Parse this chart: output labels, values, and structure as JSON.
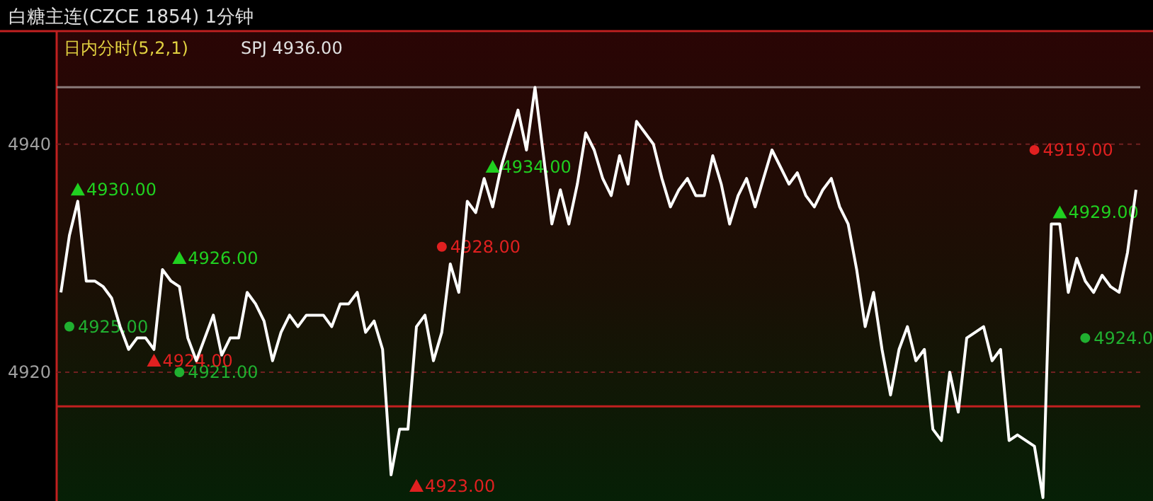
{
  "chart_data": {
    "type": "line",
    "title": "白糖主连(CZCE 1854)  1分钟",
    "subtitle": "日内分时(5,2,1)",
    "annotations": [
      "SPJ 4936.00",
      "4930.00",
      "4926.00",
      "4934.00",
      "4929.00",
      "4925.00",
      "4921.00",
      "4924.0",
      "4924.00",
      "4923.00",
      "4928.00",
      "4919.00"
    ],
    "categories": [
      null,
      null,
      null,
      null,
      null,
      null,
      null,
      null,
      null,
      null,
      null,
      null,
      null,
      null,
      null,
      null,
      null,
      null,
      null,
      null,
      null,
      null,
      null,
      null,
      null,
      null,
      null,
      null,
      null,
      null,
      null,
      null,
      null,
      null,
      null,
      null,
      null,
      null,
      null,
      null,
      null,
      null,
      null,
      null,
      null,
      null,
      null,
      null,
      null,
      null,
      null,
      null,
      null,
      null,
      null,
      null,
      null,
      null,
      null,
      null,
      null,
      null,
      null,
      null,
      null,
      null,
      null,
      null,
      null,
      null,
      null,
      null,
      null,
      null,
      null,
      null,
      null,
      null,
      null,
      null,
      null,
      null,
      null,
      null,
      null,
      null,
      null,
      null,
      null,
      null,
      null,
      null,
      null,
      null,
      null,
      null,
      null,
      null,
      null,
      null,
      null,
      null,
      null,
      null,
      null,
      null,
      null,
      null,
      null,
      null,
      null,
      null,
      null,
      null,
      null,
      null,
      null,
      null,
      null,
      null,
      null,
      null,
      null,
      null,
      null,
      null,
      null,
      null
    ],
    "ylim": [
      4908.7,
      4949.8
    ],
    "yticks": [
      4920,
      4940
    ],
    "tick_labels": "y",
    "grid": "y",
    "ref_lines": [
      {
        "axis": "y",
        "value": 4917,
        "color": "#c02020",
        "line_style": "solid"
      },
      {
        "axis": "y",
        "value": 4945,
        "color": "#8a7a7a",
        "line_style": "solid"
      }
    ],
    "series": [
      {
        "color": "#ffffff",
        "values": [
          4927,
          4932,
          4935,
          4928,
          4928,
          4927.5,
          4926.5,
          4924,
          4922,
          4923,
          4923,
          4922,
          4929,
          4928,
          4927.5,
          4923,
          4921,
          4923,
          4925,
          4921.5,
          4923,
          4923,
          4927,
          4926,
          4924.5,
          4921,
          4923.5,
          4925,
          4924,
          4925,
          4925,
          4925,
          4924,
          4926,
          4926,
          4927,
          4923.5,
          4924.5,
          4922,
          4911,
          4915,
          4915,
          4924,
          4925,
          4921,
          4923.5,
          4929.5,
          4927,
          4935,
          4934,
          4937,
          4934.5,
          4938,
          4940.5,
          4943,
          4939.5,
          4945,
          4939,
          4933,
          4936,
          4933,
          4936.5,
          4941,
          4939.5,
          4937,
          4935.5,
          4939,
          4936.5,
          4942,
          4941,
          4940,
          4937,
          4934.5,
          4936,
          4937,
          4935.5,
          4935.5,
          4939,
          4936.5,
          4933,
          4935.5,
          4937,
          4934.5,
          4937,
          4939.5,
          4938,
          4936.5,
          4937.5,
          4935.5,
          4934.5,
          4936,
          4937,
          4934.5,
          4933,
          4929,
          4924,
          4927,
          4922,
          4918,
          4922,
          4924,
          4921,
          4922,
          4915,
          4914,
          4920,
          4916.5,
          4923,
          4923.5,
          4924,
          4921,
          4922,
          4914,
          4914.5,
          4914,
          4913.5,
          4909,
          4933,
          4933,
          4927,
          4930,
          4928,
          4927,
          4928.5,
          4927.5,
          4927,
          4930.5,
          4936
        ]
      },
      {
        "type": "scatter",
        "color": "#20d020",
        "marker": "triangle",
        "values": [
          null,
          null,
          4936,
          null,
          null,
          null,
          null,
          null,
          null,
          null,
          null,
          null,
          null,
          null,
          4930,
          null,
          null,
          null,
          null,
          null,
          null,
          null,
          null,
          null,
          null,
          null,
          null,
          null,
          null,
          null,
          null,
          null,
          null,
          null,
          null,
          null,
          null,
          null,
          null,
          null,
          null,
          null,
          null,
          null,
          null,
          null,
          null,
          null,
          null,
          null,
          null,
          4938,
          null,
          null,
          null,
          null,
          null,
          null,
          null,
          null,
          null,
          null,
          null,
          null,
          null,
          null,
          null,
          null,
          null,
          null,
          null,
          null,
          null,
          null,
          null,
          null,
          null,
          null,
          null,
          null,
          null,
          null,
          null,
          null,
          null,
          null,
          null,
          null,
          null,
          null,
          null,
          null,
          null,
          null,
          null,
          null,
          null,
          null,
          null,
          null,
          null,
          null,
          null,
          null,
          null,
          null,
          null,
          null,
          null,
          null,
          null,
          null,
          null,
          null,
          null,
          null,
          null,
          null,
          4934,
          null,
          null,
          null,
          null,
          null,
          null,
          null,
          null,
          null
        ]
      },
      {
        "type": "scatter",
        "color": "#20b030",
        "marker": "circle",
        "values": [
          null,
          4924,
          null,
          null,
          null,
          null,
          null,
          null,
          null,
          null,
          null,
          null,
          null,
          null,
          4920,
          null,
          null,
          null,
          null,
          null,
          null,
          null,
          null,
          null,
          null,
          null,
          null,
          null,
          null,
          null,
          null,
          null,
          null,
          null,
          null,
          null,
          null,
          null,
          null,
          null,
          null,
          null,
          null,
          null,
          null,
          null,
          null,
          null,
          null,
          null,
          null,
          null,
          null,
          null,
          null,
          null,
          null,
          null,
          null,
          null,
          null,
          null,
          null,
          null,
          null,
          null,
          null,
          null,
          null,
          null,
          null,
          null,
          null,
          null,
          null,
          null,
          null,
          null,
          null,
          null,
          null,
          null,
          null,
          null,
          null,
          null,
          null,
          null,
          null,
          null,
          null,
          null,
          null,
          null,
          null,
          null,
          null,
          null,
          null,
          null,
          null,
          null,
          null,
          null,
          null,
          null,
          null,
          null,
          null,
          null,
          null,
          null,
          null,
          null,
          null,
          null,
          null,
          null,
          null,
          null,
          null,
          4923,
          null,
          null,
          null,
          null,
          null,
          null
        ]
      },
      {
        "type": "scatter",
        "color": "#e02020",
        "marker": "triangle",
        "values": [
          null,
          null,
          null,
          null,
          null,
          null,
          null,
          null,
          null,
          null,
          null,
          4921,
          null,
          null,
          null,
          null,
          null,
          null,
          null,
          null,
          null,
          null,
          null,
          null,
          null,
          null,
          null,
          null,
          null,
          null,
          null,
          null,
          null,
          null,
          null,
          null,
          null,
          null,
          null,
          null,
          null,
          null,
          4910,
          null,
          null,
          null,
          null,
          null,
          null,
          null,
          null,
          null,
          null,
          null,
          null,
          null,
          null,
          null,
          null,
          null,
          null,
          null,
          null,
          null,
          null,
          null,
          null,
          null,
          null,
          null,
          null,
          null,
          null,
          null,
          null,
          null,
          null,
          null,
          null,
          null,
          null,
          null,
          null,
          null,
          null,
          null,
          null,
          null,
          null,
          null,
          null,
          null,
          null,
          null,
          null,
          null,
          null,
          null,
          null,
          null,
          null,
          null,
          null,
          null,
          null,
          null,
          null,
          null,
          null,
          null,
          null,
          null,
          null,
          null,
          null,
          null,
          null,
          null,
          null,
          null,
          null,
          null,
          null,
          null,
          null,
          null,
          null,
          null
        ]
      },
      {
        "type": "scatter",
        "color": "#e02020",
        "marker": "circle",
        "values": [
          null,
          null,
          null,
          null,
          null,
          null,
          null,
          null,
          null,
          null,
          null,
          null,
          null,
          null,
          null,
          null,
          null,
          null,
          null,
          null,
          null,
          null,
          null,
          null,
          null,
          null,
          null,
          null,
          null,
          null,
          null,
          null,
          null,
          null,
          null,
          null,
          null,
          null,
          null,
          null,
          null,
          null,
          null,
          null,
          null,
          4931,
          null,
          null,
          null,
          null,
          null,
          null,
          null,
          null,
          null,
          null,
          null,
          null,
          null,
          null,
          null,
          null,
          null,
          null,
          null,
          null,
          null,
          null,
          null,
          null,
          null,
          null,
          null,
          null,
          null,
          null,
          null,
          null,
          null,
          null,
          null,
          null,
          null,
          null,
          null,
          null,
          null,
          null,
          null,
          null,
          null,
          null,
          null,
          null,
          null,
          null,
          null,
          null,
          null,
          null,
          null,
          null,
          null,
          null,
          null,
          null,
          null,
          null,
          null,
          null,
          null,
          null,
          null,
          null,
          null,
          4939.5,
          null,
          null,
          null,
          null,
          null,
          null,
          null,
          null,
          null,
          null,
          null,
          null
        ]
      }
    ]
  }
}
